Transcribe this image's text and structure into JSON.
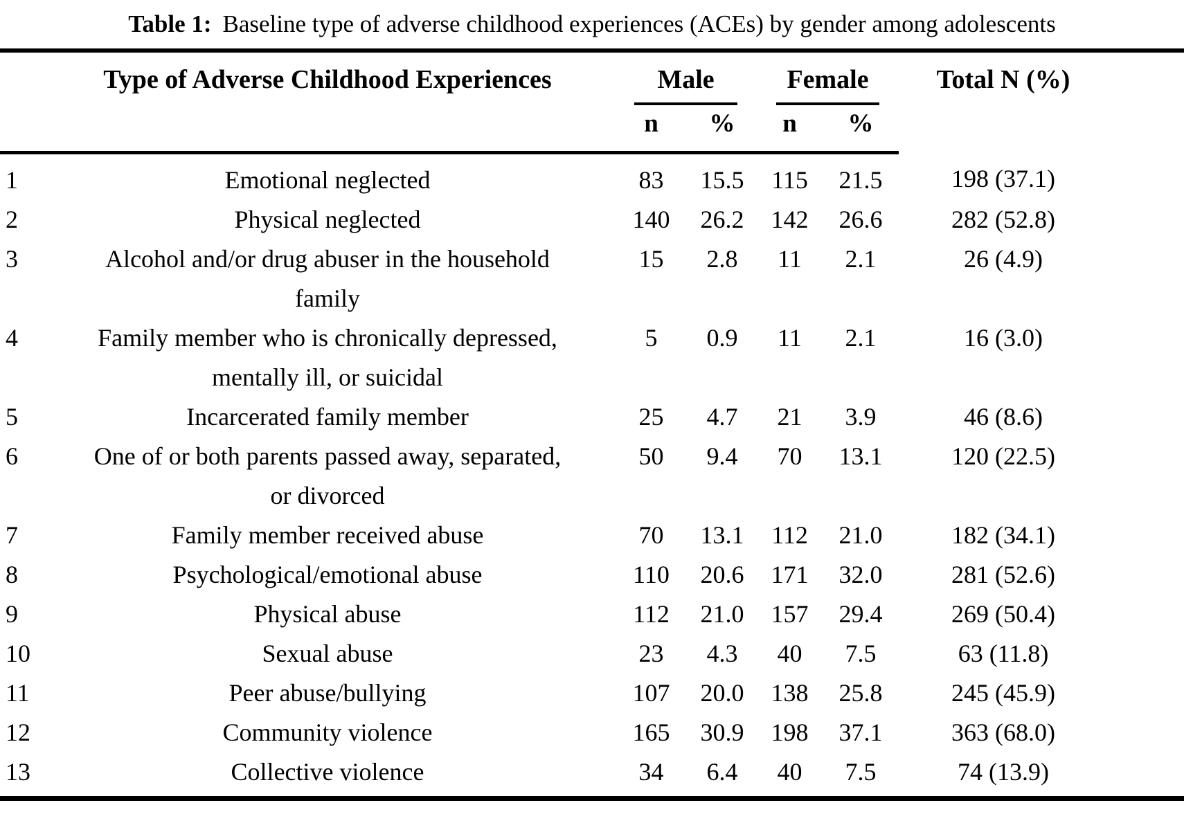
{
  "title": {
    "prefix": "Table 1:",
    "text": "Baseline type of adverse childhood experiences (ACEs) by gender among adolescents"
  },
  "colors": {
    "text": "#000000",
    "background": "#ffffff",
    "rule": "#000000"
  },
  "table": {
    "header": {
      "type_col": "Type of Adverse Childhood Experiences",
      "male_group": "Male",
      "female_group": "Female",
      "total_col": "Total N (%)",
      "sub": {
        "male_n": "n",
        "male_pct": "%",
        "female_n": "n",
        "female_pct": "%"
      }
    },
    "rows": [
      {
        "num": "1",
        "type": "Emotional neglected",
        "male_n": "83",
        "male_pct": "15.5",
        "female_n": "115",
        "female_pct": "21.5",
        "total": "198 (37.1)"
      },
      {
        "num": "2",
        "type": "Physical neglected",
        "male_n": "140",
        "male_pct": "26.2",
        "female_n": "142",
        "female_pct": "26.6",
        "total": "282 (52.8)"
      },
      {
        "num": "3",
        "type": "Alcohol and/or drug abuser in the household\nfamily",
        "male_n": "15",
        "male_pct": "2.8",
        "female_n": "11",
        "female_pct": "2.1",
        "total": "26 (4.9)"
      },
      {
        "num": "4",
        "type": "Family member who is chronically depressed,\nmentally ill, or suicidal",
        "male_n": "5",
        "male_pct": "0.9",
        "female_n": "11",
        "female_pct": "2.1",
        "total": "16 (3.0)"
      },
      {
        "num": "5",
        "type": "Incarcerated family member",
        "male_n": "25",
        "male_pct": "4.7",
        "female_n": "21",
        "female_pct": "3.9",
        "total": "46 (8.6)"
      },
      {
        "num": "6",
        "type": "One of or both parents passed away, separated,\nor divorced",
        "male_n": "50",
        "male_pct": "9.4",
        "female_n": "70",
        "female_pct": "13.1",
        "total": "120 (22.5)"
      },
      {
        "num": "7",
        "type": "Family member received abuse",
        "male_n": "70",
        "male_pct": "13.1",
        "female_n": "112",
        "female_pct": "21.0",
        "total": "182 (34.1)"
      },
      {
        "num": "8",
        "type": "Psychological/emotional abuse",
        "male_n": "110",
        "male_pct": "20.6",
        "female_n": "171",
        "female_pct": "32.0",
        "total": "281 (52.6)"
      },
      {
        "num": "9",
        "type": "Physical abuse",
        "male_n": "112",
        "male_pct": "21.0",
        "female_n": "157",
        "female_pct": "29.4",
        "total": "269 (50.4)"
      },
      {
        "num": "10",
        "type": "Sexual abuse",
        "male_n": "23",
        "male_pct": "4.3",
        "female_n": "40",
        "female_pct": "7.5",
        "total": "63 (11.8)"
      },
      {
        "num": "11",
        "type": "Peer abuse/bullying",
        "male_n": "107",
        "male_pct": "20.0",
        "female_n": "138",
        "female_pct": "25.8",
        "total": "245 (45.9)"
      },
      {
        "num": "12",
        "type": "Community violence",
        "male_n": "165",
        "male_pct": "30.9",
        "female_n": "198",
        "female_pct": "37.1",
        "total": "363 (68.0)"
      },
      {
        "num": "13",
        "type": "Collective violence",
        "male_n": "34",
        "male_pct": "6.4",
        "female_n": "40",
        "female_pct": "7.5",
        "total": "74 (13.9)"
      }
    ]
  }
}
